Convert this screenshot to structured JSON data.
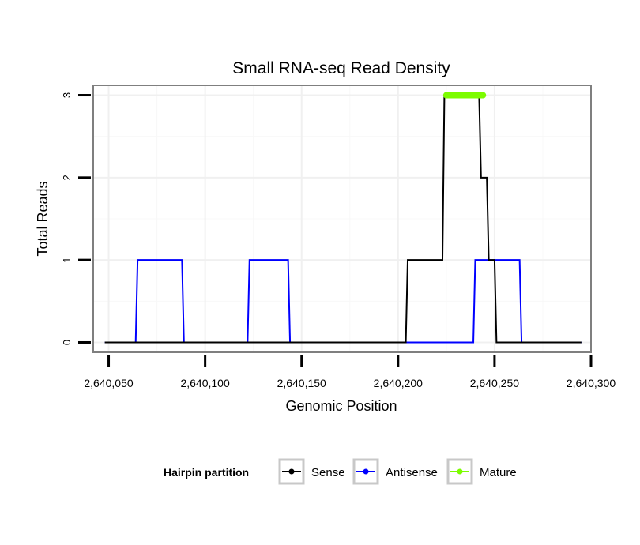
{
  "chart_data": {
    "type": "line",
    "title": "Small RNA-seq Read Density",
    "xlabel": "Genomic Position",
    "ylabel": "Total Reads",
    "xlim": [
      2640042,
      2640300
    ],
    "ylim": [
      -0.12,
      3.12
    ],
    "x_ticks": [
      2640050,
      2640100,
      2640150,
      2640200,
      2640250,
      2640300
    ],
    "x_tick_labels": [
      "2,640,050",
      "2,640,100",
      "2,640,150",
      "2,640,200",
      "2,640,250",
      "2,640,300"
    ],
    "y_ticks": [
      0,
      1,
      2,
      3
    ],
    "y_tick_labels": [
      "0",
      "1",
      "2",
      "3"
    ],
    "grid": true,
    "legend": {
      "title": "Hairpin partition",
      "position": "bottom",
      "entries": [
        "Sense",
        "Antisense",
        "Mature"
      ]
    },
    "series": [
      {
        "name": "Sense",
        "color": "#000000",
        "x": [
          2640048,
          2640204,
          2640205,
          2640223,
          2640224,
          2640242,
          2640243,
          2640246,
          2640247,
          2640250,
          2640251,
          2640295
        ],
        "y": [
          0,
          0,
          1,
          1,
          3,
          3,
          2,
          2,
          1,
          1,
          0,
          0
        ]
      },
      {
        "name": "Antisense",
        "color": "#0000ff",
        "x": [
          2640048,
          2640064,
          2640065,
          2640088,
          2640089,
          2640122,
          2640123,
          2640143,
          2640144,
          2640239,
          2640240,
          2640263,
          2640264,
          2640295
        ],
        "y": [
          0,
          0,
          1,
          1,
          0,
          0,
          1,
          1,
          0,
          0,
          1,
          1,
          0,
          0
        ]
      },
      {
        "name": "Mature",
        "color": "#7cfc00",
        "x": [
          2640225,
          2640244
        ],
        "y": [
          3,
          3
        ]
      }
    ]
  }
}
